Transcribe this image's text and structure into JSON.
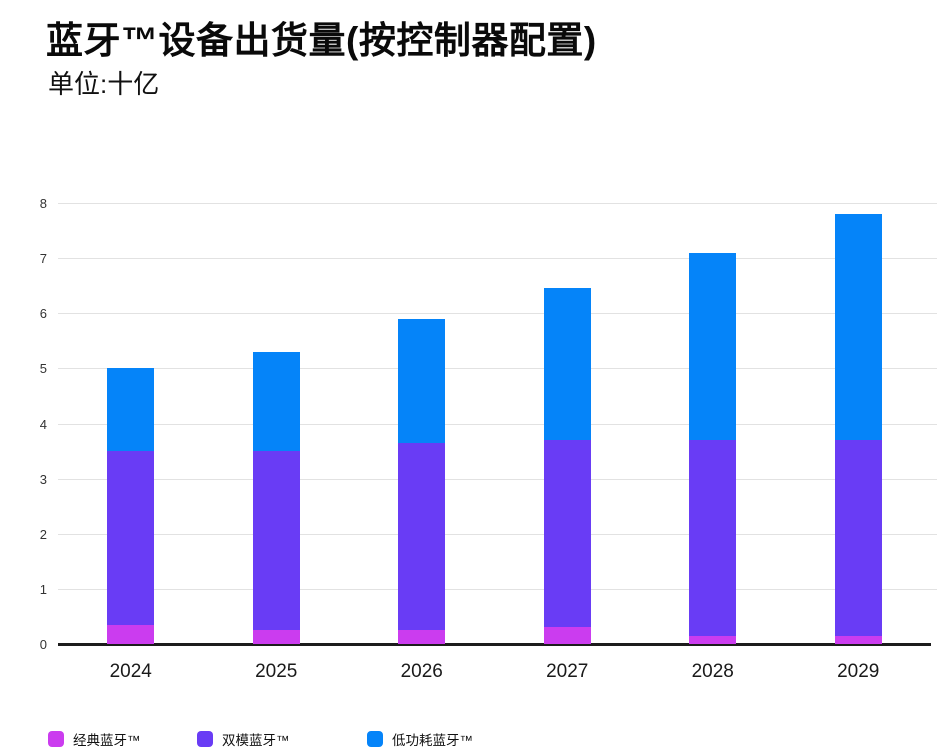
{
  "header": {
    "title": "蓝牙™设备出货量(按控制器配置)",
    "subtitle": "单位:十亿"
  },
  "chart_data": {
    "type": "bar",
    "stacked": true,
    "title": "蓝牙™设备出货量(按控制器配置)",
    "subtitle": "单位:十亿",
    "unit_label": "十亿",
    "categories": [
      "2024",
      "2025",
      "2026",
      "2027",
      "2028",
      "2029"
    ],
    "series": [
      {
        "name": "经典蓝牙™",
        "color": "#CB3CEF",
        "values": [
          0.35,
          0.25,
          0.25,
          0.3,
          0.15,
          0.15
        ]
      },
      {
        "name": "双模蓝牙™",
        "color": "#693CF5",
        "values": [
          3.15,
          3.25,
          3.4,
          3.4,
          3.55,
          3.55
        ]
      },
      {
        "name": "低功耗蓝牙™",
        "color": "#0584F9",
        "values": [
          1.5,
          1.8,
          2.25,
          2.75,
          3.4,
          4.1
        ]
      }
    ],
    "totals": [
      5.0,
      5.3,
      5.9,
      6.45,
      7.1,
      7.8
    ],
    "ylim": [
      0,
      8
    ],
    "yticks": [
      0,
      1,
      2,
      3,
      4,
      5,
      6,
      7,
      8
    ],
    "grid": true,
    "legend_position": "bottom"
  }
}
